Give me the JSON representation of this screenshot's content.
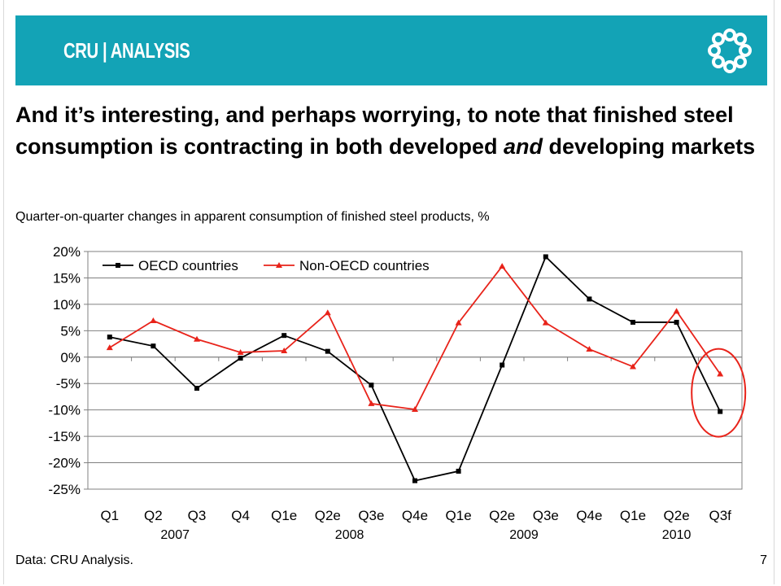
{
  "slide": {
    "brand": "CRU | ANALYSIS",
    "headline_parts": [
      "And it’s interesting, and perhaps worrying, to note that finished steel consumption is contracting in both developed ",
      "and",
      " developing markets"
    ],
    "subtitle": "Quarter-on-quarter changes in apparent consumption of finished steel products, %",
    "footer": "Data: CRU Analysis.",
    "page_number": "7",
    "logo_icon": "circle-of-dots-icon"
  },
  "colors": {
    "banner": "#13a3b6",
    "oecd": "#000000",
    "non_oecd": "#e8231a",
    "highlight": "#e8231a"
  },
  "chart_data": {
    "type": "line",
    "categories": [
      "Q1",
      "Q2",
      "Q3",
      "Q4",
      "Q1e",
      "Q2e",
      "Q3e",
      "Q4e",
      "Q1e",
      "Q2e",
      "Q3e",
      "Q4e",
      "Q1e",
      "Q2e",
      "Q3f"
    ],
    "year_labels": [
      {
        "label": "2007",
        "start": 0,
        "end": 3
      },
      {
        "label": "2008",
        "start": 4,
        "end": 7
      },
      {
        "label": "2009",
        "start": 8,
        "end": 11
      },
      {
        "label": "2010",
        "start": 12,
        "end": 14
      }
    ],
    "series": [
      {
        "name": "OECD countries",
        "marker": "square",
        "color": "#000000",
        "values": [
          3.8,
          2.1,
          -5.9,
          -0.2,
          4.1,
          1.1,
          -5.3,
          -23.4,
          -21.6,
          -1.5,
          19.0,
          11.0,
          6.6,
          6.6,
          -10.3
        ]
      },
      {
        "name": "Non-OECD countries",
        "marker": "triangle",
        "color": "#e8231a",
        "values": [
          1.8,
          6.9,
          3.4,
          0.9,
          1.2,
          8.4,
          -8.8,
          -9.9,
          6.5,
          17.2,
          6.5,
          1.5,
          -1.8,
          8.7,
          -3.2
        ]
      }
    ],
    "yticks": [
      "20%",
      "15%",
      "10%",
      "5%",
      "0%",
      "-5%",
      "-10%",
      "-15%",
      "-20%",
      "-25%"
    ],
    "ylim": [
      -25,
      20
    ],
    "ystep": 5,
    "grid": true,
    "legend": "top-left",
    "highlight_category": "Q3f"
  }
}
